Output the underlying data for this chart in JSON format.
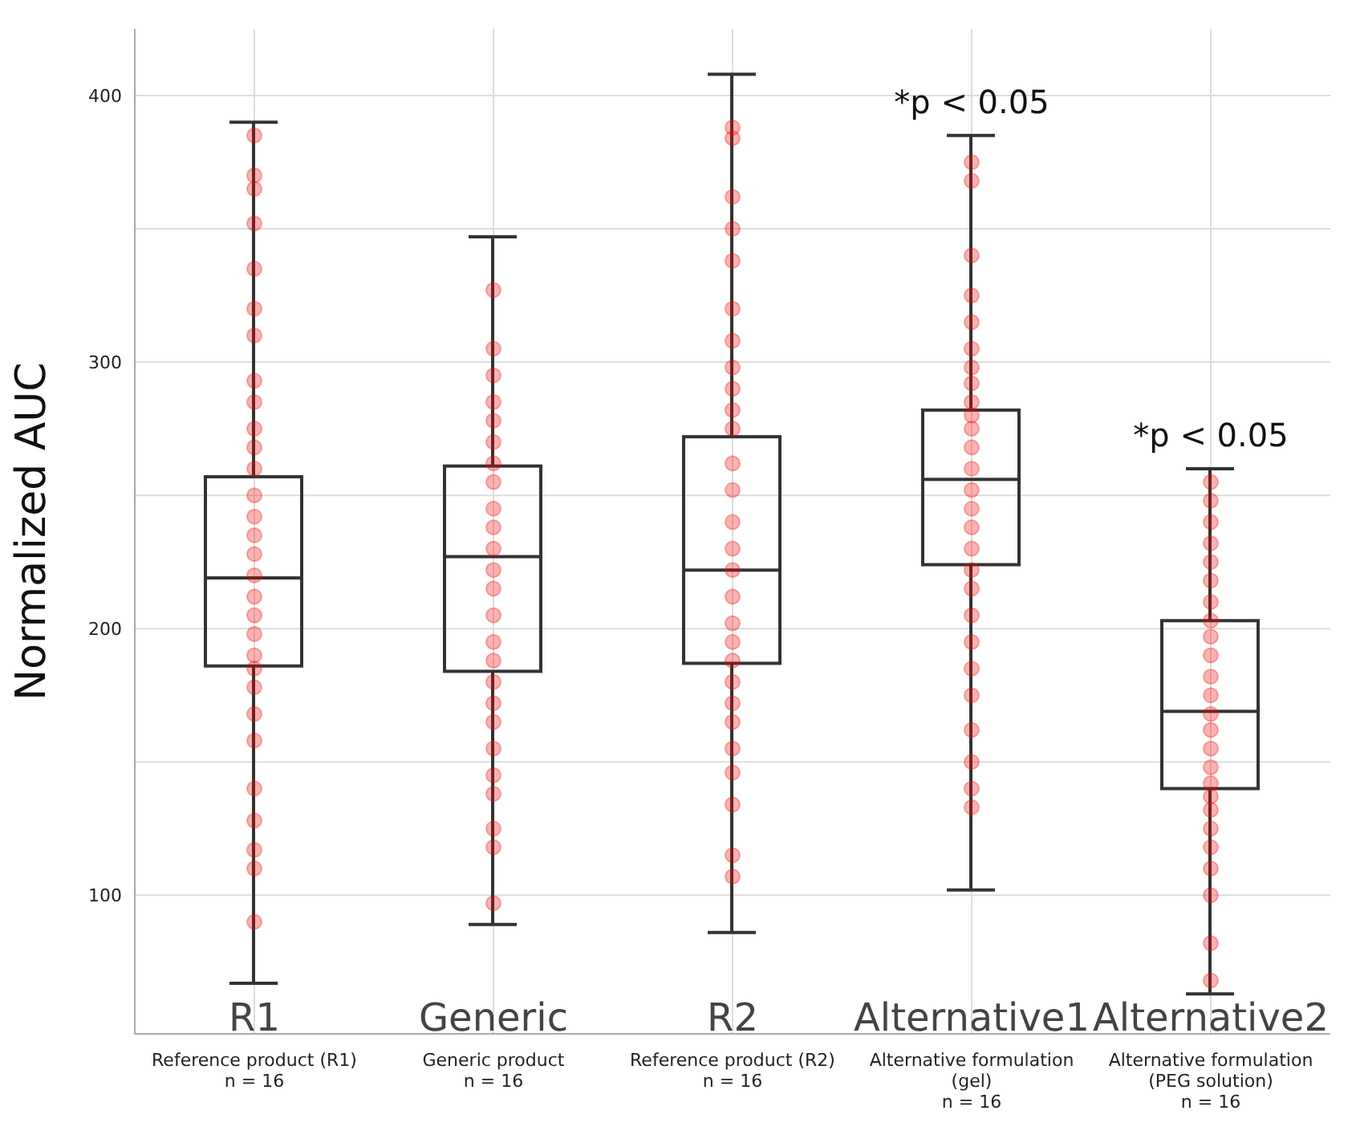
{
  "chart_data": {
    "type": "box",
    "ylabel": "Normalized AUC",
    "categories": [
      "Reference product (R1)\nn = 16",
      "Generic product\nn = 16",
      "Reference product (R2)\nn = 16",
      "Alternative formulation\n(gel)\nn = 16",
      "Alternative formulation\n(PEG solution)\nn = 16"
    ],
    "ylim": [
      48,
      425
    ],
    "yticks": [
      100,
      {
        "value": 150,
        "label": null
      },
      200,
      {
        "value": 250,
        "label": null
      },
      300,
      {
        "value": 350,
        "label": null
      },
      400
    ],
    "grid": true,
    "legend": false,
    "series": [
      {
        "color": "#333333",
        "boxes": [
          {
            "low": 67,
            "q1": 186,
            "median": 219,
            "q3": 257,
            "high": 390
          },
          {
            "low": 89,
            "q1": 184,
            "median": 227,
            "q3": 261,
            "high": 347
          },
          {
            "low": 86,
            "q1": 187,
            "median": 222,
            "q3": 272,
            "high": 408
          },
          {
            "low": 102,
            "q1": 224,
            "median": 256,
            "q3": 282,
            "high": 385
          },
          {
            "low": 63,
            "q1": 140,
            "median": 169,
            "q3": 203,
            "high": 260
          }
        ]
      },
      {
        "type": "scatter",
        "color": "#ff0000",
        "marker": "circle",
        "x": [
          "Reference product (R1)\nn = 16",
          "Reference product (R1)\nn = 16",
          "Reference product (R1)\nn = 16",
          "Reference product (R1)\nn = 16",
          "Reference product (R1)\nn = 16",
          "Reference product (R1)\nn = 16",
          "Reference product (R1)\nn = 16",
          "Reference product (R1)\nn = 16",
          "Reference product (R1)\nn = 16",
          "Reference product (R1)\nn = 16",
          "Reference product (R1)\nn = 16",
          "Reference product (R1)\nn = 16",
          "Reference product (R1)\nn = 16",
          "Reference product (R1)\nn = 16",
          "Reference product (R1)\nn = 16",
          "Reference product (R1)\nn = 16",
          "Reference product (R1)\nn = 16",
          "Reference product (R1)\nn = 16",
          "Reference product (R1)\nn = 16",
          "Reference product (R1)\nn = 16",
          "Reference product (R1)\nn = 16",
          "Reference product (R1)\nn = 16",
          "Reference product (R1)\nn = 16",
          "Reference product (R1)\nn = 16",
          "Reference product (R1)\nn = 16",
          "Reference product (R1)\nn = 16",
          "Reference product (R1)\nn = 16",
          "Reference product (R1)\nn = 16",
          "Reference product (R1)\nn = 16",
          "Reference product (R1)\nn = 16"
        ],
        "values": [
          385,
          370,
          365,
          352,
          335,
          320,
          310,
          293,
          285,
          275,
          268,
          260,
          250,
          242,
          235,
          228,
          220,
          212,
          205,
          198,
          190,
          185,
          178,
          168,
          158,
          140,
          128,
          117,
          110,
          90
        ]
      },
      {
        "type": "scatter",
        "color": "#ff0000",
        "marker": "circle",
        "x": [
          "Generic product\nn = 16",
          "Generic product\nn = 16",
          "Generic product\nn = 16",
          "Generic product\nn = 16",
          "Generic product\nn = 16",
          "Generic product\nn = 16",
          "Generic product\nn = 16",
          "Generic product\nn = 16",
          "Generic product\nn = 16",
          "Generic product\nn = 16",
          "Generic product\nn = 16",
          "Generic product\nn = 16",
          "Generic product\nn = 16",
          "Generic product\nn = 16",
          "Generic product\nn = 16",
          "Generic product\nn = 16",
          "Generic product\nn = 16",
          "Generic product\nn = 16",
          "Generic product\nn = 16",
          "Generic product\nn = 16",
          "Generic product\nn = 16",
          "Generic product\nn = 16",
          "Generic product\nn = 16",
          "Generic product\nn = 16",
          "Generic product\nn = 16"
        ],
        "values": [
          327,
          305,
          295,
          285,
          278,
          270,
          262,
          255,
          245,
          238,
          230,
          222,
          215,
          205,
          195,
          188,
          180,
          172,
          165,
          155,
          145,
          138,
          125,
          118,
          97
        ]
      },
      {
        "type": "scatter",
        "color": "#ff0000",
        "marker": "circle",
        "x": [
          "Reference product (R2)\nn = 16",
          "Reference product (R2)\nn = 16",
          "Reference product (R2)\nn = 16",
          "Reference product (R2)\nn = 16",
          "Reference product (R2)\nn = 16",
          "Reference product (R2)\nn = 16",
          "Reference product (R2)\nn = 16",
          "Reference product (R2)\nn = 16",
          "Reference product (R2)\nn = 16",
          "Reference product (R2)\nn = 16",
          "Reference product (R2)\nn = 16",
          "Reference product (R2)\nn = 16",
          "Reference product (R2)\nn = 16",
          "Reference product (R2)\nn = 16",
          "Reference product (R2)\nn = 16",
          "Reference product (R2)\nn = 16",
          "Reference product (R2)\nn = 16",
          "Reference product (R2)\nn = 16",
          "Reference product (R2)\nn = 16",
          "Reference product (R2)\nn = 16",
          "Reference product (R2)\nn = 16",
          "Reference product (R2)\nn = 16",
          "Reference product (R2)\nn = 16",
          "Reference product (R2)\nn = 16",
          "Reference product (R2)\nn = 16",
          "Reference product (R2)\nn = 16",
          "Reference product (R2)\nn = 16",
          "Reference product (R2)\nn = 16"
        ],
        "values": [
          388,
          384,
          362,
          350,
          338,
          320,
          308,
          298,
          290,
          282,
          275,
          262,
          252,
          240,
          230,
          222,
          212,
          202,
          195,
          188,
          180,
          172,
          165,
          155,
          146,
          134,
          115,
          107
        ]
      },
      {
        "type": "scatter",
        "color": "#ff0000",
        "marker": "circle",
        "x": [
          "Alternative formulation\n(gel)\nn = 16",
          "Alternative formulation\n(gel)\nn = 16",
          "Alternative formulation\n(gel)\nn = 16",
          "Alternative formulation\n(gel)\nn = 16",
          "Alternative formulation\n(gel)\nn = 16",
          "Alternative formulation\n(gel)\nn = 16",
          "Alternative formulation\n(gel)\nn = 16",
          "Alternative formulation\n(gel)\nn = 16",
          "Alternative formulation\n(gel)\nn = 16",
          "Alternative formulation\n(gel)\nn = 16",
          "Alternative formulation\n(gel)\nn = 16",
          "Alternative formulation\n(gel)\nn = 16",
          "Alternative formulation\n(gel)\nn = 16",
          "Alternative formulation\n(gel)\nn = 16",
          "Alternative formulation\n(gel)\nn = 16",
          "Alternative formulation\n(gel)\nn = 16",
          "Alternative formulation\n(gel)\nn = 16",
          "Alternative formulation\n(gel)\nn = 16",
          "Alternative formulation\n(gel)\nn = 16",
          "Alternative formulation\n(gel)\nn = 16",
          "Alternative formulation\n(gel)\nn = 16",
          "Alternative formulation\n(gel)\nn = 16",
          "Alternative formulation\n(gel)\nn = 16",
          "Alternative formulation\n(gel)\nn = 16",
          "Alternative formulation\n(gel)\nn = 16",
          "Alternative formulation\n(gel)\nn = 16",
          "Alternative formulation\n(gel)\nn = 16"
        ],
        "values": [
          375,
          368,
          340,
          325,
          315,
          305,
          298,
          292,
          285,
          280,
          275,
          268,
          260,
          252,
          245,
          238,
          230,
          222,
          215,
          205,
          195,
          185,
          175,
          162,
          150,
          140,
          133
        ]
      },
      {
        "type": "scatter",
        "color": "#ff0000",
        "marker": "circle",
        "x": [
          "Alternative formulation\n(PEG solution)\nn = 16",
          "Alternative formulation\n(PEG solution)\nn = 16",
          "Alternative formulation\n(PEG solution)\nn = 16",
          "Alternative formulation\n(PEG solution)\nn = 16",
          "Alternative formulation\n(PEG solution)\nn = 16",
          "Alternative formulation\n(PEG solution)\nn = 16",
          "Alternative formulation\n(PEG solution)\nn = 16",
          "Alternative formulation\n(PEG solution)\nn = 16",
          "Alternative formulation\n(PEG solution)\nn = 16",
          "Alternative formulation\n(PEG solution)\nn = 16",
          "Alternative formulation\n(PEG solution)\nn = 16",
          "Alternative formulation\n(PEG solution)\nn = 16",
          "Alternative formulation\n(PEG solution)\nn = 16",
          "Alternative formulation\n(PEG solution)\nn = 16",
          "Alternative formulation\n(PEG solution)\nn = 16",
          "Alternative formulation\n(PEG solution)\nn = 16",
          "Alternative formulation\n(PEG solution)\nn = 16",
          "Alternative formulation\n(PEG solution)\nn = 16",
          "Alternative formulation\n(PEG solution)\nn = 16",
          "Alternative formulation\n(PEG solution)\nn = 16",
          "Alternative formulation\n(PEG solution)\nn = 16",
          "Alternative formulation\n(PEG solution)\nn = 16",
          "Alternative formulation\n(PEG solution)\nn = 16",
          "Alternative formulation\n(PEG solution)\nn = 16",
          "Alternative formulation\n(PEG solution)\nn = 16"
        ],
        "values": [
          255,
          248,
          240,
          232,
          225,
          218,
          210,
          203,
          197,
          190,
          182,
          175,
          168,
          162,
          155,
          148,
          142,
          137,
          132,
          125,
          118,
          110,
          100,
          82,
          68
        ]
      }
    ],
    "annotations": [
      "R1",
      "Generic",
      "R2",
      "Alternative1",
      "Alternative2",
      "*p <  0.05",
      "*p <  0.05"
    ]
  }
}
